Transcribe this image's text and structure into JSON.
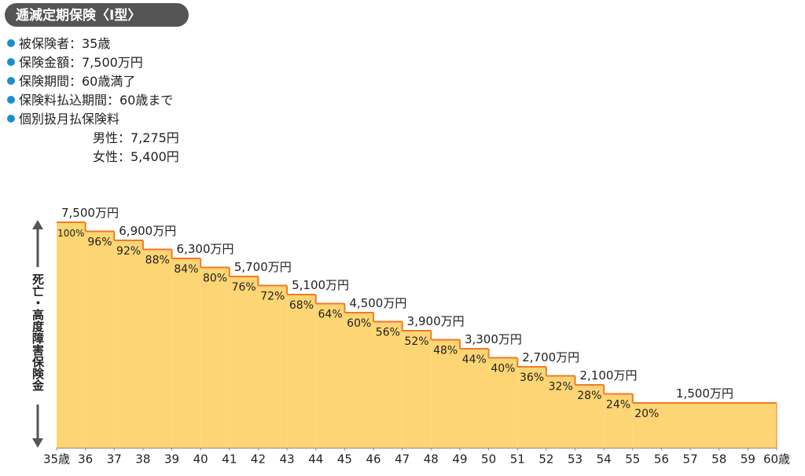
{
  "header": {
    "title": "逓減定期保険〈Ⅰ型〉",
    "items": [
      "被保険者：35歳",
      "保険金額：7,500万円",
      "保険期間：60歳満了",
      "保険料払込期間：60歳まで",
      "個別扱月払保険料"
    ],
    "premiums": [
      "男性：7,275円",
      "女性：5,400円"
    ]
  },
  "chart_data": {
    "type": "step",
    "y_label": "死亡・高度障害保険金",
    "x": [
      35,
      36,
      37,
      38,
      39,
      40,
      41,
      42,
      43,
      44,
      45,
      46,
      47,
      48,
      49,
      50,
      51,
      52,
      53,
      54,
      55
    ],
    "values": [
      100,
      96,
      92,
      88,
      84,
      80,
      76,
      72,
      68,
      64,
      60,
      56,
      52,
      48,
      44,
      40,
      36,
      32,
      28,
      24,
      20
    ],
    "value_labels": [
      "100%",
      "96%",
      "92%",
      "88%",
      "84%",
      "80%",
      "76%",
      "72%",
      "68%",
      "64%",
      "60%",
      "56%",
      "52%",
      "48%",
      "44%",
      "40%",
      "36%",
      "32%",
      "28%",
      "24%",
      "20%"
    ],
    "amount_labels": [
      "7,500万円",
      null,
      "6,900万円",
      null,
      "6,300万円",
      null,
      "5,700万円",
      null,
      "5,100万円",
      null,
      "4,500万円",
      null,
      "3,900万円",
      null,
      "3,300万円",
      null,
      "2,700万円",
      null,
      "2,100万円",
      null,
      "1,500万円"
    ],
    "color": "#fdd574",
    "line_color": "#f07a2a",
    "xlim": [
      35,
      60
    ],
    "ylim": [
      0,
      100
    ],
    "xticks": [
      {
        "value": 35,
        "label": "35歳"
      },
      36,
      37,
      38,
      39,
      40,
      41,
      42,
      43,
      44,
      45,
      46,
      47,
      48,
      49,
      50,
      51,
      52,
      53,
      54,
      55,
      56,
      57,
      58,
      59,
      {
        "value": 60,
        "label": "60歳"
      }
    ]
  }
}
